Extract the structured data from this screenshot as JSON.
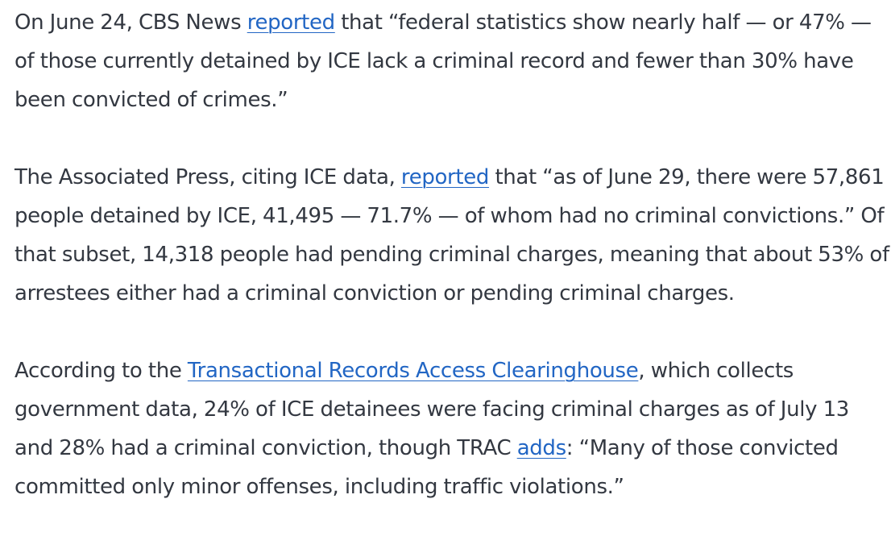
{
  "paragraphs": [
    {
      "part1": "On June 24, CBS News ",
      "link1": "reported",
      "part2": " that “federal statistics show nearly half — or 47% — of those currently detained by ICE lack a criminal record and fewer than 30% have been convicted of crimes.”"
    },
    {
      "part1": "The Associated Press, citing ICE data, ",
      "link1": "reported",
      "part2": " that “as of June 29, there were 57,861 people detained by ICE, 41,495 — 71.7% — of whom had no criminal convictions.” Of that subset, 14,318 people had pending criminal charges, meaning that about 53% of arrestees either had a criminal conviction or pending criminal charges."
    },
    {
      "part1": "According to the ",
      "link1": "Transactional Records Access Clearinghouse",
      "part2": ", which collects government data, 24% of ICE detainees were facing criminal charges as of July 13 and 28% had a criminal conviction, though TRAC ",
      "link2": "adds",
      "part3": ": “Many of those convicted committed only minor offenses, including traffic violations.”"
    }
  ],
  "colors": {
    "text": "#333841",
    "link": "#2266c4",
    "background": "#ffffff"
  }
}
